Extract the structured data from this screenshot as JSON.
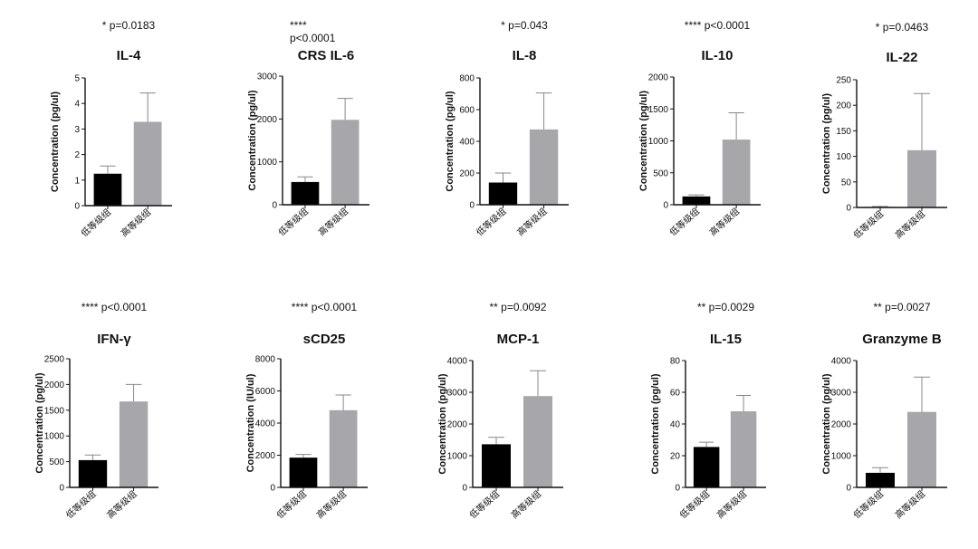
{
  "chart_data": [
    {
      "type": "bar",
      "title": "IL-4",
      "pvalue_lines": [
        "* p=0.0183"
      ],
      "ylabel": "Concentration (pg/ul)",
      "categories": [
        "低等级组",
        "高等级组"
      ],
      "values": [
        1.25,
        3.28
      ],
      "errors": [
        0.3,
        1.13
      ],
      "ylim": [
        0,
        5
      ],
      "yticks": [
        0,
        1,
        2,
        3,
        4,
        5
      ],
      "colors": [
        "#000000",
        "#a6a6ab"
      ]
    },
    {
      "type": "bar",
      "title": "CRS IL-6",
      "pvalue_lines": [
        "****",
        "p<0.0001"
      ],
      "ylabel": "Concentration (pg/ul)",
      "categories": [
        "低等级组",
        "高等级组"
      ],
      "values": [
        530,
        1980
      ],
      "errors": [
        120,
        500
      ],
      "ylim": [
        0,
        3000
      ],
      "yticks": [
        0,
        1000,
        2000,
        3000
      ],
      "colors": [
        "#000000",
        "#a6a6ab"
      ]
    },
    {
      "type": "bar",
      "title": "IL-8",
      "pvalue_lines": [
        "* p=0.043"
      ],
      "ylabel": "Concentration (pg/ul)",
      "categories": [
        "低等级组",
        "高等级组"
      ],
      "values": [
        140,
        475
      ],
      "errors": [
        60,
        230
      ],
      "ylim": [
        0,
        800
      ],
      "yticks": [
        0,
        200,
        400,
        600,
        800
      ],
      "colors": [
        "#000000",
        "#a6a6ab"
      ]
    },
    {
      "type": "bar",
      "title": "IL-10",
      "pvalue_lines": [
        "**** p<0.0001"
      ],
      "ylabel": "Concentration (pg/ul)",
      "categories": [
        "低等级组",
        "高等级组"
      ],
      "values": [
        130,
        1020
      ],
      "errors": [
        25,
        420
      ],
      "ylim": [
        0,
        2000
      ],
      "yticks": [
        0,
        500,
        1000,
        1500,
        2000
      ],
      "colors": [
        "#000000",
        "#a6a6ab"
      ]
    },
    {
      "type": "bar",
      "title": "IL-22",
      "pvalue_lines": [
        "* p=0.0463"
      ],
      "ylabel": "Concentration (pg/ul)",
      "categories": [
        "低等级组",
        "高等级组"
      ],
      "values": [
        1,
        112
      ],
      "errors": [
        1,
        111
      ],
      "ylim": [
        0,
        250
      ],
      "yticks": [
        0,
        50,
        100,
        150,
        200,
        250
      ],
      "colors": [
        "#000000",
        "#a6a6ab"
      ]
    },
    {
      "type": "bar",
      "title": "IFN-γ",
      "pvalue_lines": [
        "**** p<0.0001"
      ],
      "ylabel": "Concentration (pg/ul)",
      "categories": [
        "低等级组",
        "高等级组"
      ],
      "values": [
        530,
        1670
      ],
      "errors": [
        100,
        330
      ],
      "ylim": [
        0,
        2500
      ],
      "yticks": [
        0,
        500,
        1000,
        1500,
        2000,
        2500
      ],
      "colors": [
        "#000000",
        "#a6a6ab"
      ]
    },
    {
      "type": "bar",
      "title": "sCD25",
      "pvalue_lines": [
        "**** p<0.0001"
      ],
      "ylabel": "Concentration (IU/ul)",
      "categories": [
        "低等级组",
        "高等级组"
      ],
      "values": [
        1850,
        4800
      ],
      "errors": [
        200,
        950
      ],
      "ylim": [
        0,
        8000
      ],
      "yticks": [
        0,
        2000,
        4000,
        6000,
        8000
      ],
      "colors": [
        "#000000",
        "#a6a6ab"
      ]
    },
    {
      "type": "bar",
      "title": "MCP-1",
      "pvalue_lines": [
        "** p=0.0092"
      ],
      "ylabel": "Concentration (pg/ul)",
      "categories": [
        "低等级组",
        "高等级组"
      ],
      "values": [
        1360,
        2880
      ],
      "errors": [
        220,
        800
      ],
      "ylim": [
        0,
        4000
      ],
      "yticks": [
        0,
        1000,
        2000,
        3000,
        4000
      ],
      "colors": [
        "#000000",
        "#a6a6ab"
      ]
    },
    {
      "type": "bar",
      "title": "IL-15",
      "pvalue_lines": [
        "** p=0.0029"
      ],
      "ylabel": "Concentration (pg/ul)",
      "categories": [
        "低等级组",
        "高等级组"
      ],
      "values": [
        25.5,
        48
      ],
      "errors": [
        3,
        10
      ],
      "ylim": [
        0,
        80
      ],
      "yticks": [
        0,
        20,
        40,
        60,
        80
      ],
      "colors": [
        "#000000",
        "#a6a6ab"
      ]
    },
    {
      "type": "bar",
      "title": "Granzyme B",
      "pvalue_lines": [
        "** p=0.0027"
      ],
      "ylabel": "Concentration (pg/ul)",
      "categories": [
        "低等级组",
        "高等级组"
      ],
      "values": [
        460,
        2380
      ],
      "errors": [
        160,
        1100
      ],
      "ylim": [
        0,
        4000
      ],
      "yticks": [
        0,
        1000,
        2000,
        3000,
        4000
      ],
      "colors": [
        "#000000",
        "#a6a6ab"
      ]
    }
  ]
}
